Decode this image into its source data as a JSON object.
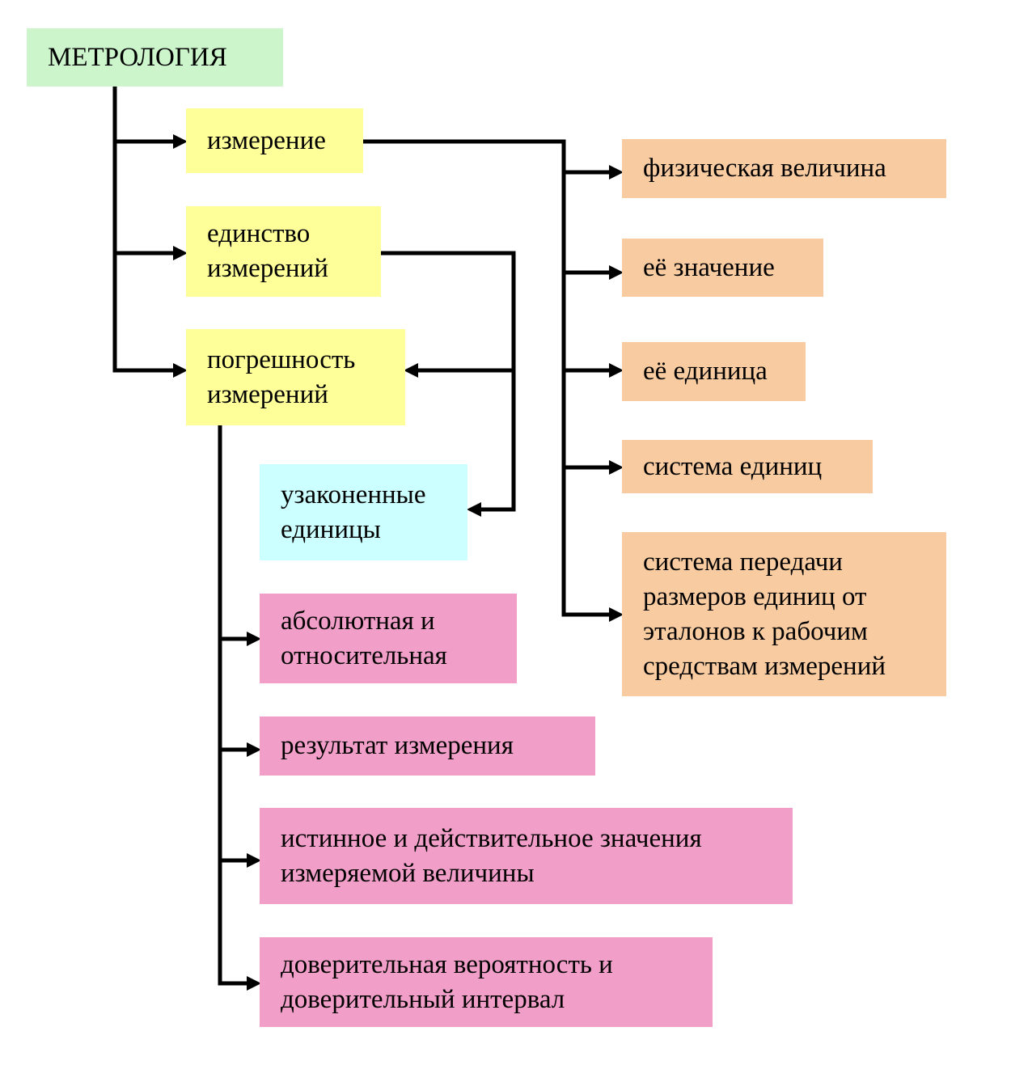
{
  "root": {
    "label": "МЕТРОЛОГИЯ",
    "color": "#ccf5cc"
  },
  "concepts": {
    "color": "#ffff99",
    "measurement": [
      "измерение"
    ],
    "unity": [
      "единство",
      "измерений"
    ],
    "error": [
      "погрешность",
      "измерений"
    ]
  },
  "measurement_aspects": {
    "color": "#f8cba0",
    "items": [
      [
        "физическая величина"
      ],
      [
        "её значение"
      ],
      [
        "её единица"
      ],
      [
        "система единиц"
      ],
      [
        "система передачи",
        "размеров единиц от",
        "эталонов к рабочим",
        "средствам измерений"
      ]
    ]
  },
  "legal_units": {
    "color": "#ccffff",
    "lines": [
      "узаконенные",
      "единицы"
    ]
  },
  "error_aspects": {
    "color": "#f19fc8",
    "items": [
      [
        "абсолютная и",
        "относительная"
      ],
      [
        "результат измерения"
      ],
      [
        "истинное и действительное значения",
        "измеряемой величины"
      ],
      [
        "доверительная вероятность и",
        "доверительный интервал"
      ]
    ]
  }
}
